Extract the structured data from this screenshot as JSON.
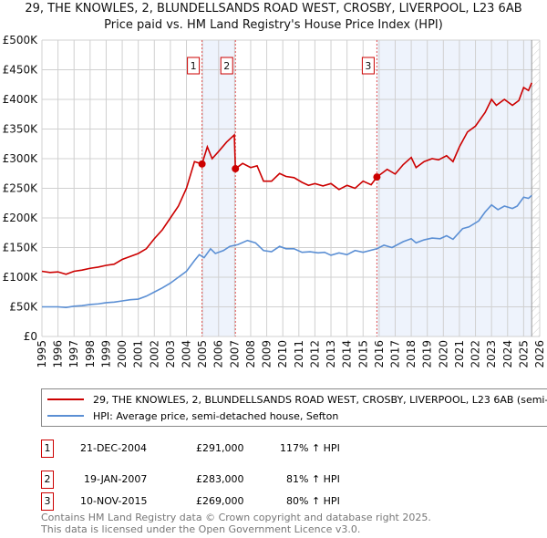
{
  "title": "29, THE KNOWLES, 2, BLUNDELLSANDS ROAD WEST, CROSBY, LIVERPOOL, L23 6AB",
  "subtitle": "Price paid vs. HM Land Registry's House Price Index (HPI)",
  "chart_data": {
    "type": "line",
    "ylim": [
      0,
      500000
    ],
    "xlim": [
      1995,
      2026
    ],
    "grid": true,
    "yticks": [
      {
        "v": 0,
        "label": "£0"
      },
      {
        "v": 50000,
        "label": "£50K"
      },
      {
        "v": 100000,
        "label": "£100K"
      },
      {
        "v": 150000,
        "label": "£150K"
      },
      {
        "v": 200000,
        "label": "£200K"
      },
      {
        "v": 250000,
        "label": "£250K"
      },
      {
        "v": 300000,
        "label": "£300K"
      },
      {
        "v": 350000,
        "label": "£350K"
      },
      {
        "v": 400000,
        "label": "£400K"
      },
      {
        "v": 450000,
        "label": "£450K"
      },
      {
        "v": 500000,
        "label": "£500K"
      }
    ],
    "xticks": [
      "1995",
      "1996",
      "1997",
      "1998",
      "1999",
      "2000",
      "2001",
      "2002",
      "2003",
      "2004",
      "2005",
      "2006",
      "2007",
      "2008",
      "2009",
      "2010",
      "2011",
      "2012",
      "2013",
      "2014",
      "2015",
      "2016",
      "2017",
      "2018",
      "2019",
      "2020",
      "2021",
      "2022",
      "2023",
      "2024",
      "2025",
      "2026"
    ],
    "series": [
      {
        "name": "29, THE KNOWLES, 2, BLUNDELLSANDS ROAD WEST, CROSBY, LIVERPOOL, L23 6AB (semi-detached house)",
        "color": "#cc0000",
        "points": [
          [
            1995,
            110
          ],
          [
            1995.5,
            108
          ],
          [
            1996,
            109
          ],
          [
            1996.5,
            105
          ],
          [
            1997,
            110
          ],
          [
            1997.5,
            112
          ],
          [
            1998,
            115
          ],
          [
            1998.5,
            117
          ],
          [
            1999,
            120
          ],
          [
            1999.5,
            122
          ],
          [
            2000,
            130
          ],
          [
            2000.5,
            135
          ],
          [
            2001,
            140
          ],
          [
            2001.5,
            148
          ],
          [
            2002,
            165
          ],
          [
            2002.5,
            180
          ],
          [
            2003,
            200
          ],
          [
            2003.5,
            220
          ],
          [
            2004,
            250
          ],
          [
            2004.5,
            295
          ],
          [
            2004.97,
            291
          ],
          [
            2005.3,
            320
          ],
          [
            2005.6,
            300
          ],
          [
            2006,
            312
          ],
          [
            2006.5,
            328
          ],
          [
            2006.98,
            340
          ],
          [
            2007.05,
            283
          ],
          [
            2007.5,
            292
          ],
          [
            2008,
            285
          ],
          [
            2008.4,
            288
          ],
          [
            2008.8,
            262
          ],
          [
            2009.3,
            262
          ],
          [
            2009.8,
            275
          ],
          [
            2010.2,
            270
          ],
          [
            2010.7,
            268
          ],
          [
            2011.2,
            260
          ],
          [
            2011.6,
            255
          ],
          [
            2012,
            258
          ],
          [
            2012.5,
            254
          ],
          [
            2013,
            258
          ],
          [
            2013.5,
            248
          ],
          [
            2014,
            255
          ],
          [
            2014.5,
            250
          ],
          [
            2015,
            262
          ],
          [
            2015.5,
            256
          ],
          [
            2015.86,
            269
          ],
          [
            2016.5,
            282
          ],
          [
            2017,
            274
          ],
          [
            2017.5,
            290
          ],
          [
            2018,
            302
          ],
          [
            2018.3,
            285
          ],
          [
            2018.8,
            295
          ],
          [
            2019.3,
            300
          ],
          [
            2019.7,
            298
          ],
          [
            2020.2,
            305
          ],
          [
            2020.6,
            295
          ],
          [
            2021,
            320
          ],
          [
            2021.5,
            345
          ],
          [
            2022,
            355
          ],
          [
            2022.6,
            378
          ],
          [
            2023,
            400
          ],
          [
            2023.3,
            390
          ],
          [
            2023.8,
            400
          ],
          [
            2024.3,
            390
          ],
          [
            2024.7,
            398
          ],
          [
            2025,
            420
          ],
          [
            2025.3,
            415
          ],
          [
            2025.5,
            428
          ]
        ]
      },
      {
        "name": "HPI: Average price, semi-detached house, Sefton",
        "color": "#5b8fd4",
        "points": [
          [
            1995,
            50
          ],
          [
            1995.5,
            50
          ],
          [
            1996,
            50
          ],
          [
            1996.5,
            49
          ],
          [
            1997,
            51
          ],
          [
            1997.5,
            52
          ],
          [
            1998,
            54
          ],
          [
            1998.5,
            55
          ],
          [
            1999,
            57
          ],
          [
            1999.5,
            58
          ],
          [
            2000,
            60
          ],
          [
            2000.5,
            62
          ],
          [
            2001,
            63
          ],
          [
            2001.5,
            68
          ],
          [
            2002,
            75
          ],
          [
            2002.5,
            82
          ],
          [
            2003,
            90
          ],
          [
            2003.5,
            100
          ],
          [
            2004,
            110
          ],
          [
            2004.5,
            128
          ],
          [
            2004.8,
            138
          ],
          [
            2005.1,
            133
          ],
          [
            2005.5,
            148
          ],
          [
            2005.8,
            140
          ],
          [
            2006.3,
            145
          ],
          [
            2006.7,
            152
          ],
          [
            2007.2,
            155
          ],
          [
            2007.8,
            162
          ],
          [
            2008.3,
            158
          ],
          [
            2008.8,
            145
          ],
          [
            2009.3,
            143
          ],
          [
            2009.8,
            152
          ],
          [
            2010.2,
            148
          ],
          [
            2010.7,
            148
          ],
          [
            2011.2,
            142
          ],
          [
            2011.7,
            143
          ],
          [
            2012.2,
            141
          ],
          [
            2012.6,
            142
          ],
          [
            2013,
            137
          ],
          [
            2013.5,
            141
          ],
          [
            2014,
            138
          ],
          [
            2014.5,
            145
          ],
          [
            2015,
            142
          ],
          [
            2015.86,
            148
          ],
          [
            2016.3,
            154
          ],
          [
            2016.8,
            150
          ],
          [
            2017.5,
            160
          ],
          [
            2018,
            165
          ],
          [
            2018.3,
            158
          ],
          [
            2018.8,
            163
          ],
          [
            2019.3,
            166
          ],
          [
            2019.8,
            165
          ],
          [
            2020.2,
            170
          ],
          [
            2020.6,
            164
          ],
          [
            2021.2,
            182
          ],
          [
            2021.6,
            185
          ],
          [
            2022.2,
            195
          ],
          [
            2022.6,
            210
          ],
          [
            2023,
            222
          ],
          [
            2023.4,
            214
          ],
          [
            2023.8,
            220
          ],
          [
            2024.3,
            216
          ],
          [
            2024.6,
            220
          ],
          [
            2025,
            235
          ],
          [
            2025.3,
            233
          ],
          [
            2025.5,
            238
          ]
        ]
      }
    ],
    "sales": [
      {
        "id": "1",
        "x": 2004.97,
        "y": 291000
      },
      {
        "id": "2",
        "x": 2007.05,
        "y": 283000
      },
      {
        "id": "3",
        "x": 2015.86,
        "y": 269000
      }
    ],
    "shaded": [
      [
        2004.97,
        2007.05
      ],
      [
        2015.86,
        2025.5
      ]
    ],
    "data_end": 2025.5
  },
  "legend": {
    "red": "29, THE KNOWLES, 2, BLUNDELLSANDS ROAD WEST, CROSBY, LIVERPOOL, L23 6AB (semi-detached house)",
    "blue": "HPI: Average price, semi-detached house, Sefton"
  },
  "table": [
    {
      "n": "1",
      "date": "21-DEC-2004",
      "price": "£291,000",
      "hpi": "117% ↑ HPI"
    },
    {
      "n": "2",
      "date": "19-JAN-2007",
      "price": "£283,000",
      "hpi": "81% ↑ HPI"
    },
    {
      "n": "3",
      "date": "10-NOV-2015",
      "price": "£269,000",
      "hpi": "80% ↑ HPI"
    }
  ],
  "footer": [
    "Contains HM Land Registry data © Crown copyright and database right 2025.",
    "This data is licensed under the Open Government Licence v3.0."
  ]
}
